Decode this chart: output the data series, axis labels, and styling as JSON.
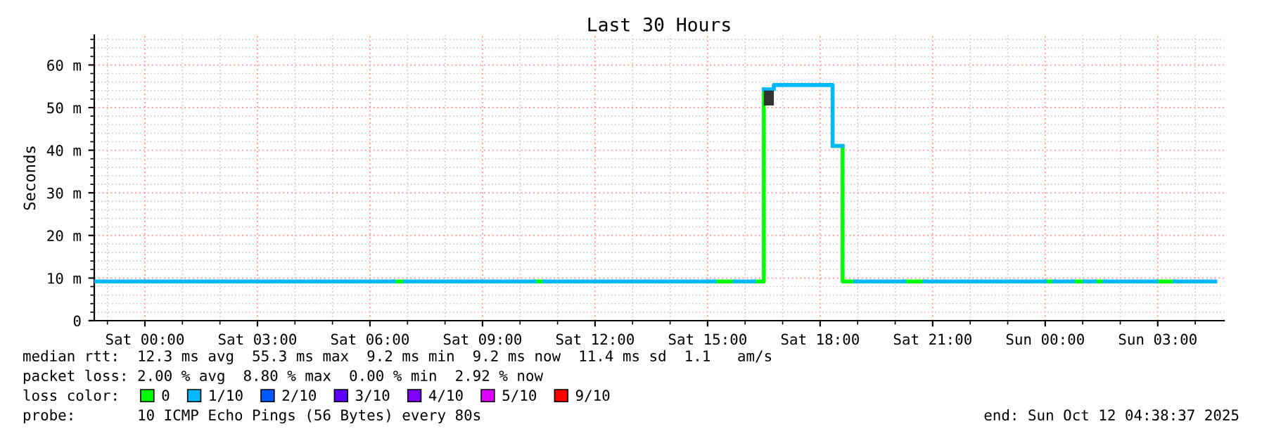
{
  "chart_data": {
    "type": "step",
    "title": "Last 30 Hours",
    "ylabel": "Seconds",
    "x": [
      "2025-10-10T22:40",
      "2025-10-11T06:38",
      "2025-10-11T06:56",
      "2025-10-11T10:23",
      "2025-10-11T10:39",
      "2025-10-11T15:11",
      "2025-10-11T15:43",
      "2025-10-11T16:14",
      "2025-10-11T16:30",
      "2025-10-11T16:46",
      "2025-10-11T18:20",
      "2025-10-11T18:36",
      "2025-10-11T18:56",
      "2025-10-11T20:15",
      "2025-10-11T20:47",
      "2025-10-12T00:00",
      "2025-10-12T00:14",
      "2025-10-12T00:45",
      "2025-10-12T01:03",
      "2025-10-12T01:19",
      "2025-10-12T01:35",
      "2025-10-12T02:58",
      "2025-10-12T03:27",
      "2025-10-12T04:32"
    ],
    "series": [
      {
        "name": "0",
        "color": "#00ff00",
        "x": [
          "2025-10-11T06:38",
          "2025-10-11T06:56",
          "2025-10-11T06:57",
          "2025-10-11T10:23",
          "2025-10-11T10:39",
          "2025-10-11T10:40",
          "2025-10-11T15:11",
          "2025-10-11T15:43",
          "2025-10-11T15:44",
          "2025-10-11T16:14",
          "2025-10-11T16:30",
          "2025-10-11T16:31",
          "2025-10-11T18:20",
          "2025-10-11T18:36",
          "2025-10-11T18:56",
          "2025-10-11T18:57",
          "2025-10-11T20:15",
          "2025-10-11T20:47",
          "2025-10-11T20:48",
          "2025-10-12T00:00",
          "2025-10-12T00:14",
          "2025-10-12T00:15",
          "2025-10-12T00:45",
          "2025-10-12T01:03",
          "2025-10-12T01:04",
          "2025-10-12T01:19",
          "2025-10-12T01:35",
          "2025-10-12T01:36",
          "2025-10-12T02:58",
          "2025-10-12T03:27"
        ],
        "values": [
          9.2,
          9.2,
          null,
          9.2,
          9.2,
          null,
          9.2,
          9.2,
          null,
          9.2,
          54.3,
          null,
          41,
          9.2,
          9.2,
          null,
          9.2,
          9.2,
          null,
          9.2,
          9.2,
          null,
          9.2,
          9.2,
          null,
          9.2,
          9.2,
          null,
          9.2,
          9.2
        ]
      },
      {
        "name": "1/10",
        "color": "#00b8ff",
        "values": [
          9.2,
          null,
          9.2,
          null,
          9.2,
          null,
          9.2,
          null,
          54.3,
          55.3,
          41,
          null,
          9.2,
          null,
          9.2,
          null,
          9.2,
          null,
          9.2,
          null,
          9.2,
          null,
          9.2,
          9.2
        ]
      },
      {
        "type": "bar",
        "color": "#333333",
        "x": [
          "2025-10-11T16:30"
        ],
        "base": [
          50.5
        ],
        "values": [
          3.5
        ]
      },
      {
        "name": "2/10",
        "color": "#0059ff",
        "values": [
          null,
          null,
          null,
          null,
          null,
          null,
          null,
          null,
          null,
          null,
          null,
          null,
          null,
          null,
          null,
          null,
          null,
          null,
          null,
          null,
          null,
          null,
          null,
          null
        ]
      },
      {
        "name": "3/10",
        "color": "#5e00ff",
        "values": [
          null,
          null,
          null,
          null,
          null,
          null,
          null,
          null,
          null,
          null,
          null,
          null,
          null,
          null,
          null,
          null,
          null,
          null,
          null,
          null,
          null,
          null,
          null,
          null
        ]
      },
      {
        "name": "4/10",
        "color": "#7e00ff",
        "values": [
          null,
          null,
          null,
          null,
          null,
          null,
          null,
          null,
          null,
          null,
          null,
          null,
          null,
          null,
          null,
          null,
          null,
          null,
          null,
          null,
          null,
          null,
          null,
          null
        ]
      },
      {
        "name": "5/10",
        "color": "#dd00ff",
        "values": [
          null,
          null,
          null,
          null,
          null,
          null,
          null,
          null,
          null,
          null,
          null,
          null,
          null,
          null,
          null,
          null,
          null,
          null,
          null,
          null,
          null,
          null,
          null,
          null
        ]
      },
      {
        "name": "9/10",
        "color": "#ff0000",
        "values": [
          null,
          null,
          null,
          null,
          null,
          null,
          null,
          null,
          null,
          null,
          null,
          null,
          null,
          null,
          null,
          null,
          null,
          null,
          null,
          null,
          null,
          null,
          null,
          null
        ]
      }
    ],
    "legend_title": "loss color:",
    "legend": "bottom",
    "xlim": [
      "2025-10-10T22:39",
      "2025-10-12T04:46"
    ],
    "xticks": [
      {
        "value": "2025-10-11T00:00",
        "label": "Sat 00:00"
      },
      {
        "value": "2025-10-11T03:00",
        "label": "Sat 03:00"
      },
      {
        "value": "2025-10-11T06:00",
        "label": "Sat 06:00"
      },
      {
        "value": "2025-10-11T09:00",
        "label": "Sat 09:00"
      },
      {
        "value": "2025-10-11T12:00",
        "label": "Sat 12:00"
      },
      {
        "value": "2025-10-11T15:00",
        "label": "Sat 15:00"
      },
      {
        "value": "2025-10-11T18:00",
        "label": "Sat 18:00"
      },
      {
        "value": "2025-10-11T21:00",
        "label": "Sat 21:00"
      },
      {
        "value": "2025-10-12T00:00",
        "label": "Sun 00:00"
      },
      {
        "value": "2025-10-12T03:00",
        "label": "Sun 03:00"
      }
    ],
    "ylim": [
      0,
      67
    ],
    "yticks": [
      0,
      {
        "value": 10,
        "label": "10 m"
      },
      {
        "value": 20,
        "label": "20 m"
      },
      {
        "value": 30,
        "label": "30 m"
      },
      {
        "value": 40,
        "label": "40 m"
      },
      {
        "value": 50,
        "label": "50 m"
      },
      {
        "value": 60,
        "label": "60 m"
      }
    ],
    "grid": true,
    "annotations": [
      "median rtt:  12.3 ms avg  55.3 ms max  9.2 ms min  9.2 ms now  11.4 ms sd  1.1   am/s",
      "packet loss: 2.00 % avg  8.80 % max  0.00 % min  2.92 % now",
      "probe:       10 ICMP Echo Pings (56 Bytes) every 80s",
      "end: Sun Oct 12 04:38:37 2025"
    ]
  }
}
